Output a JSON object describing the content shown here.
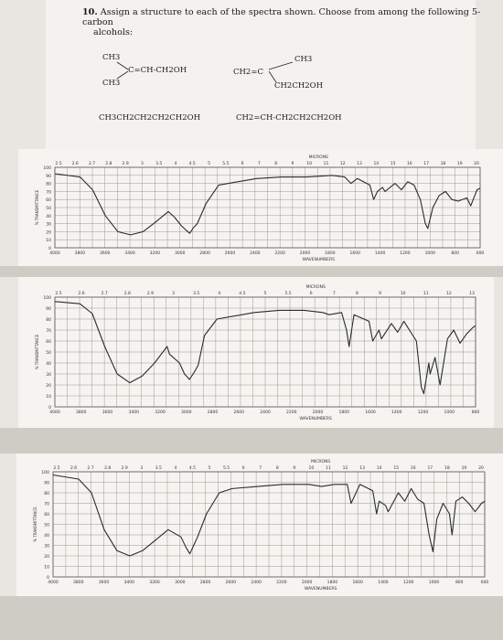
{
  "question": {
    "number": "10.",
    "text_line1": "Assign a structure to each of the spectra shown. Choose from among the following 5-carbon",
    "text_line2": "alcohols:"
  },
  "structures": [
    {
      "label": "(CH3)2C=CH-CH2OH",
      "line_a": "CH3",
      "line_b": "C=CH-CH2OH",
      "line_c": "CH3"
    },
    {
      "label": "CH2=C(CH3)CH2CH2OH",
      "line_a": "CH3",
      "line_b": "CH2=C",
      "line_c": "CH2CH2OH"
    },
    {
      "label": "CH3CH2CH2CH2CH2OH"
    },
    {
      "label": "CH2=CH-CH2CH2CH2OH"
    }
  ],
  "spectrum_labels": {
    "top_axis": "MICRONS",
    "bottom_axis": "WAVENUMBERS",
    "left_axis": "% TRANSMITTANCE"
  },
  "chart_data": [
    {
      "type": "line",
      "title": "",
      "xlabel": "WAVENUMBERS",
      "x2label": "MICRONS",
      "ylabel": "% TRANSMITTANCE",
      "xlim": [
        4000,
        625
      ],
      "ylim": [
        0,
        100
      ],
      "x_ticks": [
        "4000",
        "3800",
        "3600",
        "3400",
        "3200",
        "3000",
        "2800",
        "2600",
        "2400",
        "2200",
        "2000",
        "1800",
        "1600",
        "1400",
        "1200",
        "1000",
        "800",
        "600"
      ],
      "micron_ticks": [
        "2.5",
        "2.6",
        "2.7",
        "2.8",
        "2.9",
        "3",
        "3.5",
        "4",
        "4.5",
        "5",
        "5.5",
        "6",
        "7",
        "8",
        "9",
        "10",
        "11",
        "12",
        "13",
        "14",
        "15",
        "16",
        "17",
        "18",
        "19",
        "20"
      ],
      "y_ticks": [
        "100",
        "90",
        "80",
        "70",
        "60",
        "50",
        "40",
        "30",
        "20",
        "10",
        "0"
      ],
      "series": [
        {
          "x": [
            4000,
            3800,
            3700,
            3600,
            3500,
            3400,
            3300,
            3200,
            3100,
            3050,
            3000,
            2960,
            2930,
            2900,
            2870,
            2800,
            2700,
            2400,
            2200,
            2000,
            1800,
            1700,
            1650,
            1600,
            1500,
            1470,
            1440,
            1400,
            1380,
            1300,
            1250,
            1200,
            1150,
            1100,
            1060,
            1040,
            1000,
            950,
            900,
            850,
            800,
            730,
            700,
            650,
            625
          ],
          "y": [
            92,
            88,
            72,
            40,
            20,
            16,
            20,
            32,
            45,
            38,
            28,
            22,
            18,
            25,
            30,
            55,
            78,
            86,
            88,
            88,
            90,
            88,
            80,
            86,
            78,
            60,
            70,
            75,
            70,
            80,
            72,
            82,
            78,
            60,
            30,
            24,
            50,
            65,
            70,
            60,
            58,
            62,
            52,
            72,
            74
          ]
        }
      ]
    },
    {
      "type": "line",
      "title": "",
      "xlabel": "WAVENUMBERS",
      "x2label": "MICRONS",
      "ylabel": "% TRANSMITTANCE",
      "xlim": [
        4000,
        625
      ],
      "ylim": [
        0,
        100
      ],
      "x_ticks": [
        "4000",
        "3800",
        "3600",
        "3400",
        "3200",
        "3000",
        "2800",
        "2600",
        "2400",
        "2200",
        "2000",
        "1800",
        "1600",
        "1400",
        "1200",
        "1000",
        "800"
      ],
      "micron_ticks": [
        "2.5",
        "2.6",
        "2.7",
        "2.8",
        "2.9",
        "3",
        "3.5",
        "4",
        "4.5",
        "5",
        "5.5",
        "6",
        "7",
        "8",
        "9",
        "10",
        "11",
        "12",
        "13"
      ],
      "y_ticks": [
        "100",
        "90",
        "80",
        "70",
        "60",
        "50",
        "40",
        "30",
        "20",
        "10",
        "0"
      ],
      "series": [
        {
          "x": [
            4000,
            3800,
            3700,
            3600,
            3500,
            3400,
            3300,
            3200,
            3100,
            3080,
            3000,
            2960,
            2920,
            2880,
            2850,
            2800,
            2700,
            2400,
            2200,
            2000,
            1850,
            1800,
            1700,
            1660,
            1640,
            1600,
            1480,
            1450,
            1400,
            1380,
            1300,
            1250,
            1200,
            1100,
            1060,
            1040,
            1000,
            990,
            950,
            910,
            850,
            800,
            750,
            700,
            650,
            625
          ],
          "y": [
            96,
            94,
            85,
            55,
            30,
            22,
            28,
            40,
            55,
            48,
            40,
            30,
            25,
            32,
            38,
            65,
            80,
            86,
            88,
            88,
            86,
            84,
            86,
            70,
            55,
            84,
            78,
            60,
            70,
            62,
            76,
            68,
            78,
            60,
            18,
            12,
            40,
            30,
            45,
            20,
            62,
            70,
            58,
            66,
            72,
            74
          ]
        }
      ]
    },
    {
      "type": "line",
      "title": "",
      "xlabel": "WAVENUMBERS",
      "x2label": "MICRONS",
      "ylabel": "% TRANSMITTANCE",
      "xlim": [
        4000,
        625
      ],
      "ylim": [
        0,
        100
      ],
      "x_ticks": [
        "4000",
        "3800",
        "3600",
        "3400",
        "3200",
        "3000",
        "2800",
        "2600",
        "2400",
        "2200",
        "2000",
        "1800",
        "1600",
        "1400",
        "1200",
        "1000",
        "800",
        "600"
      ],
      "micron_ticks": [
        "2.5",
        "2.6",
        "2.7",
        "2.8",
        "2.9",
        "3",
        "3.5",
        "4",
        "4.5",
        "5",
        "5.5",
        "6",
        "7",
        "8",
        "9",
        "10",
        "11",
        "12",
        "13",
        "14",
        "15",
        "16",
        "17",
        "18",
        "19",
        "20"
      ],
      "y_ticks": [
        "100",
        "90",
        "80",
        "70",
        "60",
        "50",
        "40",
        "30",
        "20",
        "10",
        "0"
      ],
      "series": [
        {
          "x": [
            4000,
            3800,
            3700,
            3600,
            3500,
            3400,
            3300,
            3200,
            3100,
            3000,
            2960,
            2930,
            2900,
            2870,
            2800,
            2700,
            2600,
            2400,
            2200,
            2000,
            1900,
            1800,
            1700,
            1670,
            1600,
            1500,
            1470,
            1450,
            1400,
            1380,
            1300,
            1250,
            1200,
            1150,
            1100,
            1060,
            1030,
            1000,
            950,
            900,
            880,
            850,
            800,
            750,
            700,
            650,
            625
          ],
          "y": [
            97,
            93,
            80,
            45,
            25,
            20,
            25,
            35,
            45,
            38,
            28,
            22,
            30,
            38,
            60,
            80,
            84,
            86,
            88,
            88,
            86,
            88,
            88,
            70,
            88,
            82,
            60,
            72,
            68,
            62,
            80,
            72,
            84,
            74,
            70,
            40,
            24,
            55,
            70,
            60,
            40,
            72,
            76,
            70,
            62,
            70,
            72
          ]
        }
      ]
    }
  ]
}
